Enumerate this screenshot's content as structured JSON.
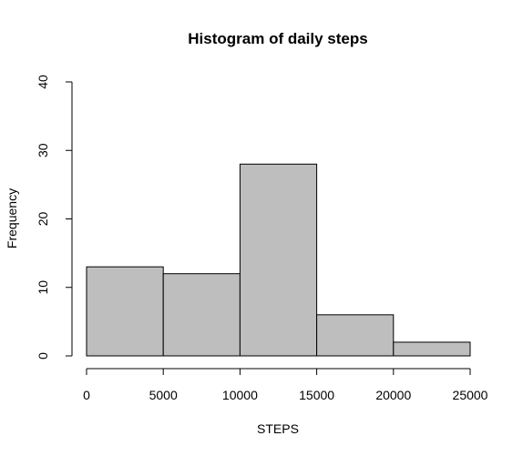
{
  "chart_data": {
    "type": "bar",
    "title": "Histogram of daily steps",
    "xlabel": "STEPS",
    "ylabel": "Frequency",
    "bins": [
      {
        "start": 0,
        "end": 5000,
        "count": 13
      },
      {
        "start": 5000,
        "end": 10000,
        "count": 12
      },
      {
        "start": 10000,
        "end": 15000,
        "count": 28
      },
      {
        "start": 15000,
        "end": 20000,
        "count": 6
      },
      {
        "start": 20000,
        "end": 25000,
        "count": 2
      }
    ],
    "xlim": [
      0,
      25000
    ],
    "ylim": [
      0,
      40
    ],
    "xticks": [
      0,
      5000,
      10000,
      15000,
      20000,
      25000
    ],
    "yticks": [
      0,
      10,
      20,
      30,
      40
    ],
    "bar_fill": "#bebebe",
    "bar_stroke": "#000000",
    "grid": false
  }
}
